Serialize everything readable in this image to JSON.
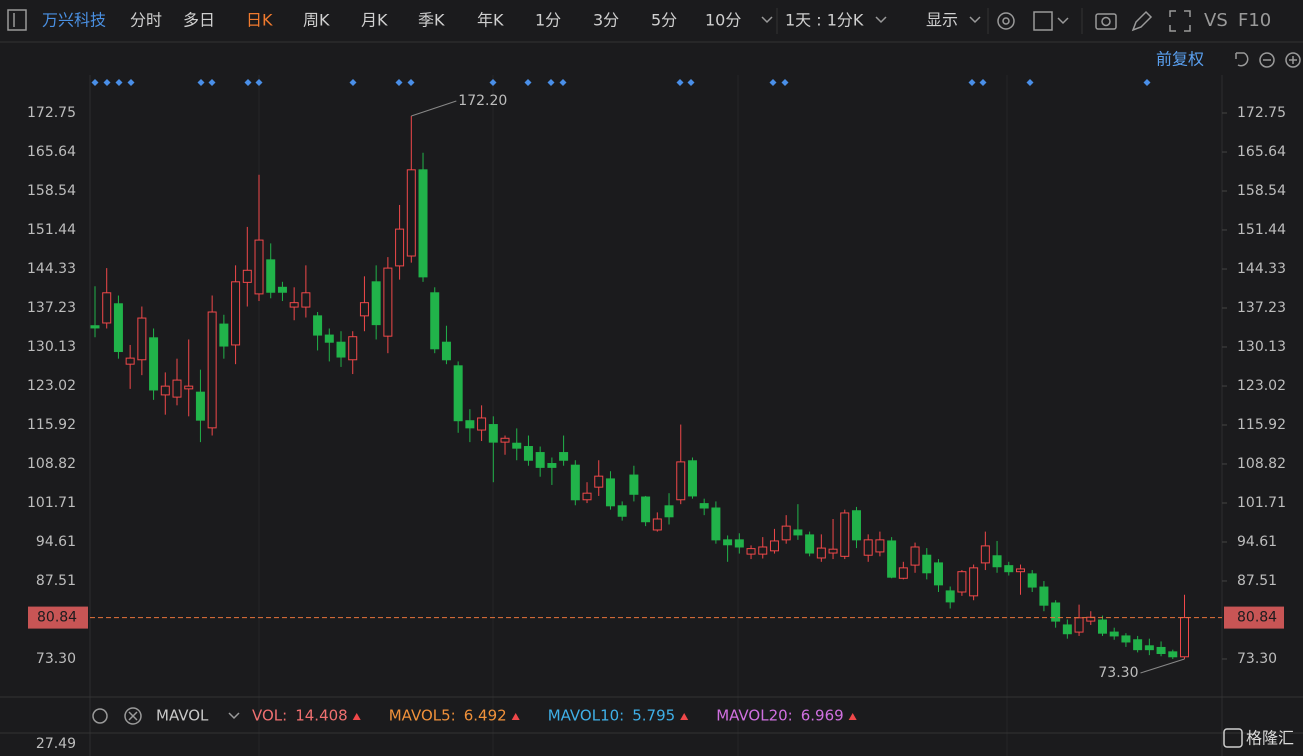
{
  "toolbar": {
    "stock_name": "万兴科技",
    "tabs": [
      "分时",
      "多日",
      "日K",
      "周K",
      "月K",
      "季K",
      "年K",
      "1分",
      "3分",
      "5分",
      "10分"
    ],
    "active_tab": 2,
    "period_select": "1天 : 1分K",
    "display": "显示",
    "vs": "VS",
    "f10": "F10"
  },
  "adjust": "前复权",
  "chart_data": {
    "type": "candlestick",
    "up_color": "#f0484a",
    "down_color": "#21b34a",
    "open": [
      134.0,
      134.5,
      138.0,
      127.0,
      127.8,
      131.8,
      121.4,
      121.0,
      122.5,
      121.9,
      115.4,
      134.3,
      130.5,
      141.9,
      139.8,
      146.0,
      141.0,
      137.4,
      137.4,
      135.8,
      132.3,
      131.0,
      127.8,
      135.8,
      142.0,
      132.1,
      144.9,
      146.7,
      162.4,
      140.0,
      131.0,
      126.7,
      116.7,
      115.0,
      116.0,
      112.8,
      112.6,
      112.0,
      110.9,
      108.9,
      110.9,
      108.6,
      102.3,
      104.6,
      106.1,
      101.2,
      106.8,
      102.8,
      96.8,
      101.2,
      102.3,
      109.4,
      101.6,
      100.8,
      95.0,
      95.0,
      92.4,
      92.4,
      93.0,
      95.0,
      96.8,
      95.9,
      91.7,
      92.6,
      92.0,
      100.3,
      92.2,
      92.8,
      94.8,
      88.0,
      90.4,
      92.2,
      90.8,
      85.7,
      85.5,
      84.8,
      90.8,
      92.1,
      90.3,
      89.2,
      88.8,
      86.4,
      83.5,
      79.5,
      78.2,
      80.2,
      80.4,
      78.2,
      77.5,
      76.8,
      75.7,
      75.4,
      74.6,
      73.7
    ],
    "high": [
      141.2,
      144.5,
      139.5,
      130.5,
      137.5,
      133.5,
      125.5,
      128.0,
      131.5,
      126.0,
      139.5,
      136.0,
      145.0,
      152.0,
      161.5,
      149.0,
      142.0,
      141.0,
      145.0,
      136.5,
      133.5,
      133.0,
      133.0,
      143.0,
      145.0,
      146.5,
      156.0,
      172.2,
      165.5,
      141.0,
      134.0,
      127.5,
      118.8,
      119.5,
      117.5,
      114.0,
      115.3,
      114.0,
      112.0,
      110.0,
      114.0,
      109.5,
      105.5,
      109.5,
      107.5,
      102.0,
      108.5,
      103.0,
      100.0,
      103.5,
      116.0,
      110.0,
      102.5,
      102.0,
      95.8,
      96.2,
      94.0,
      95.5,
      97.0,
      99.5,
      101.5,
      96.5,
      96.0,
      98.8,
      100.5,
      101.0,
      96.0,
      96.5,
      95.5,
      91.0,
      94.5,
      93.5,
      91.5,
      86.5,
      89.5,
      90.5,
      96.5,
      94.8,
      91.0,
      90.5,
      89.5,
      87.5,
      84.0,
      80.5,
      83.2,
      82.0,
      81.2,
      79.0,
      78.0,
      77.5,
      77.0,
      76.5,
      75.0,
      85.0
    ],
    "low": [
      131.9,
      133.5,
      128.0,
      122.5,
      125.0,
      120.5,
      117.8,
      119.5,
      117.5,
      112.8,
      114.0,
      128.0,
      127.0,
      137.5,
      138.5,
      139.0,
      138.5,
      135.0,
      135.5,
      129.5,
      127.5,
      126.5,
      125.2,
      133.0,
      131.5,
      129.0,
      142.4,
      145.5,
      142.0,
      129.0,
      127.0,
      114.5,
      112.8,
      113.0,
      105.5,
      110.5,
      109.5,
      108.5,
      106.5,
      105.0,
      108.5,
      101.3,
      101.7,
      103.0,
      100.5,
      98.5,
      102.0,
      97.5,
      96.5,
      97.8,
      101.5,
      102.5,
      99.5,
      94.3,
      91.0,
      92.5,
      91.5,
      91.6,
      92.5,
      94.3,
      95.0,
      92.0,
      91.0,
      91.5,
      91.5,
      93.5,
      91.0,
      92.0,
      88.0,
      87.8,
      89.0,
      87.8,
      85.5,
      82.5,
      84.8,
      84.0,
      89.5,
      89.0,
      88.5,
      85.0,
      85.5,
      82.0,
      79.0,
      77.0,
      77.5,
      79.5,
      77.5,
      76.8,
      75.5,
      74.5,
      74.0,
      73.8,
      73.3,
      73.3
    ],
    "close": [
      133.6,
      140.0,
      129.3,
      128.1,
      135.4,
      122.3,
      123.0,
      124.1,
      123.0,
      116.8,
      136.5,
      130.3,
      142.0,
      144.1,
      149.6,
      140.1,
      140.1,
      138.2,
      140.0,
      132.3,
      131.0,
      128.3,
      132.0,
      138.2,
      134.2,
      144.5,
      151.6,
      162.4,
      142.9,
      129.8,
      127.8,
      116.7,
      115.4,
      117.2,
      112.8,
      113.5,
      111.7,
      109.5,
      108.2,
      108.2,
      109.5,
      102.3,
      103.5,
      106.6,
      101.2,
      99.3,
      103.3,
      98.3,
      98.8,
      99.2,
      109.2,
      103.0,
      100.8,
      95.0,
      94.1,
      93.7,
      93.4,
      93.7,
      94.8,
      97.5,
      95.9,
      92.6,
      93.5,
      93.3,
      99.9,
      95.0,
      95.0,
      95.0,
      88.2,
      89.9,
      93.7,
      89.0,
      86.8,
      83.7,
      89.2,
      89.9,
      93.9,
      90.1,
      89.2,
      89.7,
      86.4,
      83.1,
      80.2,
      77.9,
      80.8,
      80.9,
      78.0,
      77.5,
      76.4,
      75.0,
      75.0,
      74.3,
      73.7,
      80.84
    ],
    "ylim": [
      66.74,
      179.67
    ],
    "yticks": [
      172.75,
      165.64,
      158.54,
      151.44,
      144.33,
      137.23,
      130.13,
      123.02,
      115.92,
      108.82,
      101.71,
      94.61,
      87.51,
      {
        "value": 73.3,
        "label": "73.30"
      }
    ],
    "last_price": 80.84,
    "max_label": {
      "value": 172.2,
      "label": "172.20"
    },
    "min_label": {
      "value": 73.3,
      "label": "73.30"
    }
  },
  "indicator": {
    "name": "MAVOL",
    "items": [
      {
        "label": "VOL:",
        "value": "14.408",
        "color": "#f07070"
      },
      {
        "label": "MAVOL5:",
        "value": "6.492",
        "color": "#f0913a"
      },
      {
        "label": "MAVOL10:",
        "value": "5.795",
        "color": "#3fb0e8"
      },
      {
        "label": "MAVOL20:",
        "value": "6.969",
        "color": "#d070e0"
      }
    ]
  },
  "volume_panel": {
    "yticks": [
      27.49
    ]
  },
  "watermark": "格隆汇"
}
